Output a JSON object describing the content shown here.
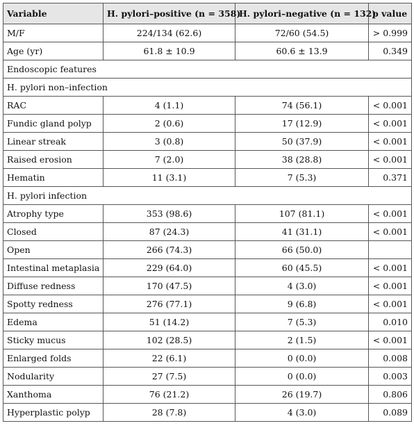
{
  "table": {
    "header": [
      "Variable",
      "H. pylori–positive (n = 358)",
      "H. pylori–negative (n = 132)",
      "p value"
    ],
    "rows": [
      [
        "M/F",
        "224/134 (62.6)",
        "72/60 (54.5)",
        "> 0.999"
      ],
      [
        "Age (yr)",
        "61.8 ± 10.9",
        "60.6 ± 13.9",
        "0.349"
      ],
      [
        "Endoscopic features"
      ],
      [
        "H. pylori non–infection"
      ],
      [
        "RAC",
        "4 (1.1)",
        "74 (56.1)",
        "< 0.001"
      ],
      [
        "Fundic gland polyp",
        "2 (0.6)",
        "17 (12.9)",
        "< 0.001"
      ],
      [
        "Linear streak",
        "3 (0.8)",
        "50 (37.9)",
        "< 0.001"
      ],
      [
        "Raised erosion",
        "7 (2.0)",
        "38 (28.8)",
        "< 0.001"
      ],
      [
        "Hematin",
        "11 (3.1)",
        "7 (5.3)",
        "0.371"
      ],
      [
        "H. pylori infection"
      ],
      [
        "Atrophy type",
        "353 (98.6)",
        "107 (81.1)",
        "< 0.001"
      ],
      [
        "Closed",
        "87 (24.3)",
        "41 (31.1)",
        "< 0.001"
      ],
      [
        "Open",
        "266 (74.3)",
        "66 (50.0)"
      ],
      [
        "Intestinal metaplasia",
        "229 (64.0)",
        "60 (45.5)",
        "< 0.001"
      ],
      [
        "Diffuse redness",
        "170 (47.5)",
        "4 (3.0)",
        "< 0.001"
      ],
      [
        "Spotty redness",
        "276 (77.1)",
        "9 (6.8)",
        "< 0.001"
      ],
      [
        "Edema",
        "51 (14.2)",
        "7 (5.3)",
        "0.010"
      ],
      [
        "Sticky mucus",
        "102 (28.5)",
        "2 (1.5)",
        "< 0.001"
      ],
      [
        "Enlarged folds",
        "22 (6.1)",
        "0 (0.0)",
        "0.008"
      ],
      [
        "Nodularity",
        "27 (7.5)",
        "0 (0.0)",
        "0.003"
      ],
      [
        "Xanthoma",
        "76 (21.2)",
        "26 (19.7)",
        "0.806"
      ],
      [
        "Hyperplastic polyp",
        "28 (7.8)",
        "4 (3.0)",
        "0.089"
      ]
    ]
  }
}
